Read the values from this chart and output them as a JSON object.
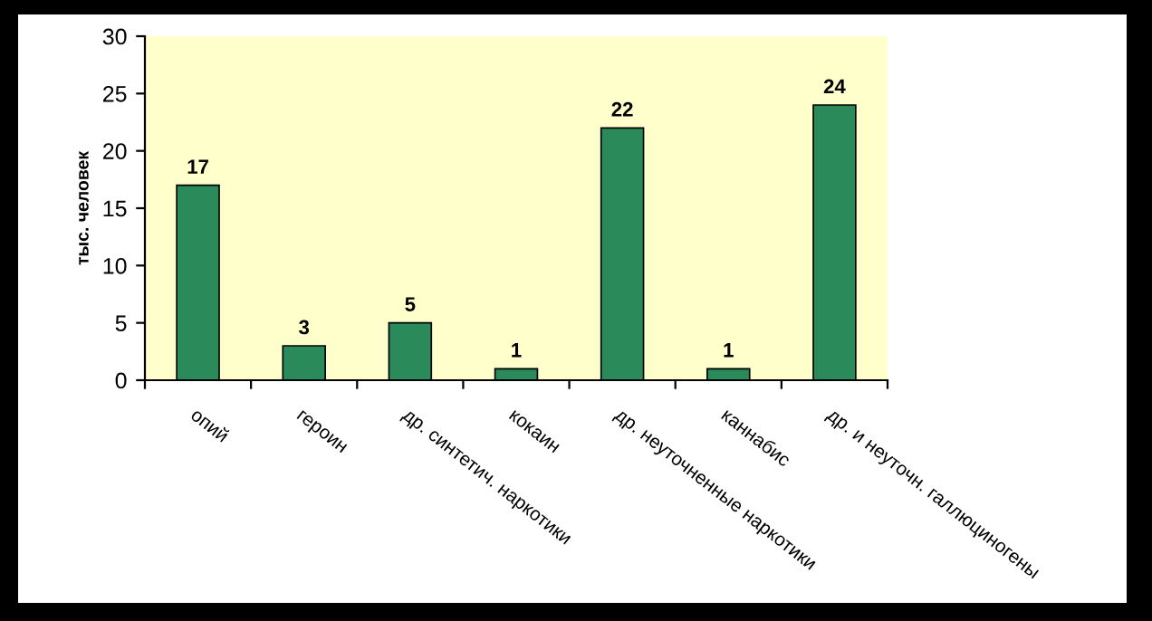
{
  "chart_data": {
    "type": "bar",
    "categories": [
      "опий",
      "героин",
      "др. синтетич. наркотики",
      "кокаин",
      "др. неуточненные наркотики",
      "каннабис",
      "др. и неуточн. галлюциногены"
    ],
    "values": [
      17,
      3,
      5,
      1,
      22,
      1,
      24
    ],
    "color": "#2a8a5a",
    "ylabel": "тыс. человек",
    "ylim": [
      0,
      30
    ],
    "yticks": [
      0,
      5,
      10,
      15,
      20,
      25,
      30
    ],
    "data_labels": true,
    "grid": false,
    "legend": false
  }
}
